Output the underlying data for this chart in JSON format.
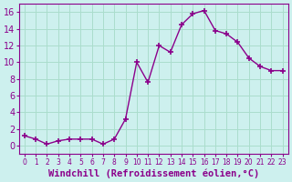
{
  "x": [
    0,
    1,
    2,
    3,
    4,
    5,
    6,
    7,
    8,
    9,
    10,
    11,
    12,
    13,
    14,
    15,
    16,
    17,
    18,
    19,
    20,
    21,
    22,
    23
  ],
  "y": [
    1.2,
    0.8,
    0.2,
    0.6,
    0.8,
    0.8,
    0.8,
    0.2,
    0.8,
    3.2,
    10.0,
    7.6,
    12.0,
    11.2,
    14.5,
    15.8,
    16.2,
    13.8,
    13.4,
    12.4,
    10.5,
    9.5,
    9.0,
    9.0
  ],
  "line_color": "#8B008B",
  "marker": "+",
  "marker_size": 4,
  "bg_color": "#cdf0ee",
  "grid_color": "#aaddcc",
  "axis_color": "#8B008B",
  "xlabel": "Windchill (Refroidissement éolien,°C)",
  "ylim": [
    -1,
    17
  ],
  "xlim": [
    -0.5,
    23.5
  ],
  "yticks": [
    0,
    2,
    4,
    6,
    8,
    10,
    12,
    14,
    16
  ],
  "xticks": [
    0,
    1,
    2,
    3,
    4,
    5,
    6,
    7,
    8,
    9,
    10,
    11,
    12,
    13,
    14,
    15,
    16,
    17,
    18,
    19,
    20,
    21,
    22,
    23
  ],
  "font_color": "#8B008B",
  "font_size": 7,
  "label_font_size": 7.5
}
